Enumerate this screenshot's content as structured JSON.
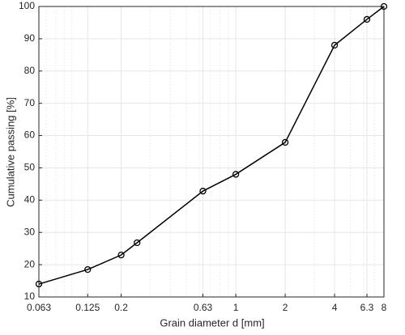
{
  "chart_data": {
    "type": "line",
    "xscale": "log",
    "xlabel": "Grain diameter d [mm]",
    "ylabel": "Cumulative passing [%]",
    "x": [
      0.063,
      0.125,
      0.2,
      0.25,
      0.63,
      1,
      2,
      4,
      6.3,
      8
    ],
    "series": [
      {
        "color": "#000000",
        "marker": "circle",
        "values": [
          14,
          18.5,
          23,
          26.8,
          42.8,
          48,
          57.9,
          88,
          96,
          100
        ]
      }
    ],
    "xlim": [
      0.063,
      8
    ],
    "ylim": [
      10,
      100
    ],
    "xticks": [
      0.063,
      0.125,
      0.2,
      0.63,
      1,
      2,
      4,
      6.3,
      8
    ],
    "yticks": [
      10,
      20,
      30,
      40,
      50,
      60,
      70,
      80,
      90,
      100
    ],
    "grid": true,
    "minor_grid": true
  }
}
